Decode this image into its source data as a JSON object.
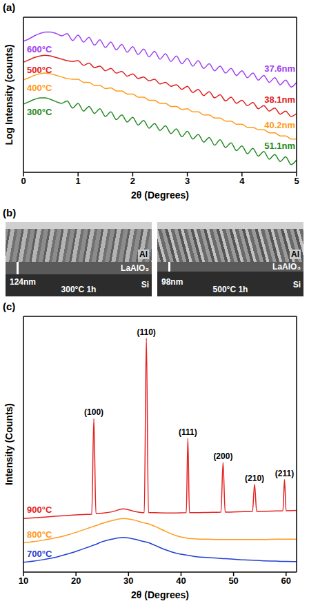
{
  "chart_data": [
    {
      "panel": "(a)",
      "type": "line",
      "x_label": "2θ (Degrees)",
      "y_label": "Log Intensity (counts)",
      "x": [
        0,
        0.1,
        0.2,
        0.3,
        0.4,
        0.5,
        0.6,
        0.7,
        0.8,
        0.9,
        1,
        1.1,
        1.2,
        1.3,
        1.4,
        1.5,
        1.6,
        1.7,
        1.8,
        1.9,
        2,
        2.1,
        2.2,
        2.3,
        2.4,
        2.5,
        2.6,
        2.7,
        2.8,
        2.9,
        3,
        3.1,
        3.2,
        3.3,
        3.4,
        3.5,
        3.6,
        3.7,
        3.8,
        3.9,
        4,
        4.1,
        4.2,
        4.3,
        4.4,
        4.5,
        4.6,
        4.7,
        4.8,
        4.9,
        5
      ],
      "xlim": [
        0,
        5
      ],
      "xticks": [
        0,
        1,
        2,
        3,
        4,
        5
      ],
      "ylim": [
        0,
        20
      ],
      "tick_labels": "x",
      "series": [
        {
          "name": "600°C",
          "color": "#a040f0",
          "annotation": "37.6nm",
          "values": [
            16.9,
            17.2,
            17.6,
            17.9,
            18.1,
            18.1,
            17.9,
            17.6,
            17.9,
            17.0,
            17.7,
            16.8,
            17.4,
            16.4,
            17.1,
            16.1,
            16.8,
            15.8,
            16.5,
            15.5,
            16.2,
            15.2,
            15.9,
            14.9,
            15.6,
            14.6,
            15.3,
            14.3,
            15.0,
            14.0,
            14.7,
            13.7,
            14.4,
            13.4,
            14.0,
            13.1,
            13.7,
            12.8,
            13.4,
            12.5,
            13.1,
            12.2,
            12.8,
            11.9,
            12.5,
            11.6,
            12.2,
            11.3,
            11.9,
            11.0,
            11.6
          ]
        },
        {
          "name": "500°C",
          "color": "#e02020",
          "annotation": "38.1nm",
          "values": [
            14.2,
            14.5,
            14.8,
            15.0,
            15.1,
            15.0,
            14.8,
            14.6,
            14.4,
            14.3,
            14.4,
            13.8,
            14.1,
            13.5,
            13.7,
            13.1,
            13.4,
            12.8,
            13.0,
            12.4,
            12.7,
            12.1,
            12.3,
            11.8,
            12.0,
            11.4,
            11.6,
            11.1,
            11.3,
            10.7,
            11.1,
            10.3,
            10.7,
            9.9,
            10.4,
            9.6,
            10.0,
            9.2,
            9.7,
            8.9,
            9.3,
            8.6,
            9.0,
            8.2,
            8.6,
            7.9,
            8.3,
            7.5,
            7.9,
            7.2,
            7.6
          ]
        },
        {
          "name": "400°C",
          "color": "#ff9a1a",
          "annotation": "40.2nm",
          "values": [
            11.9,
            12.2,
            12.5,
            12.7,
            12.8,
            12.7,
            12.5,
            12.3,
            12.1,
            12.0,
            12.0,
            11.6,
            11.6,
            11.2,
            11.2,
            10.8,
            10.9,
            10.5,
            10.5,
            10.1,
            10.1,
            9.7,
            9.7,
            9.3,
            9.3,
            8.9,
            8.9,
            8.5,
            8.5,
            8.1,
            8.2,
            7.8,
            7.8,
            7.4,
            7.4,
            7.0,
            7.0,
            6.6,
            6.6,
            6.2,
            6.2,
            5.8,
            5.8,
            5.5,
            5.5,
            5.1,
            5.1,
            4.7,
            4.7,
            4.3,
            4.3
          ]
        },
        {
          "name": "300°C",
          "color": "#228b22",
          "annotation": "51.1nm",
          "values": [
            8.8,
            9.1,
            9.4,
            9.6,
            9.6,
            9.4,
            9.1,
            8.9,
            9.2,
            8.3,
            8.9,
            7.9,
            8.5,
            7.6,
            8.2,
            7.2,
            7.8,
            6.8,
            7.4,
            6.5,
            7.1,
            6.1,
            6.7,
            5.7,
            6.3,
            5.4,
            6.0,
            5.0,
            5.6,
            4.6,
            5.3,
            4.3,
            4.9,
            3.9,
            4.5,
            3.5,
            4.2,
            3.2,
            3.8,
            2.8,
            3.4,
            2.4,
            3.1,
            2.1,
            2.7,
            1.7,
            2.3,
            1.4,
            2.0,
            1.0,
            1.6
          ]
        }
      ]
    },
    {
      "panel": "(b)",
      "type": "sem_image",
      "images": [
        {
          "caption": "300°C 1h",
          "scale_label": "124nm",
          "layers": [
            "Al",
            "LaAlO₃",
            "Si"
          ]
        },
        {
          "caption": "500°C 1h",
          "scale_label": "98nm",
          "layers": [
            "Al",
            "LaAlO₃",
            "Si"
          ]
        }
      ]
    },
    {
      "panel": "(c)",
      "type": "line",
      "x_label": "2θ (Degrees)",
      "y_label": "Intensity (Counts)",
      "x": [
        10,
        12,
        14,
        16,
        18,
        20,
        22,
        23,
        23.4,
        23.8,
        25,
        27,
        29,
        31,
        33,
        33.4,
        33.8,
        35,
        37,
        39,
        41,
        41.3,
        41.6,
        43,
        45,
        47.6,
        48,
        48.4,
        50,
        52,
        53.6,
        54,
        54.4,
        56,
        58,
        59.4,
        59.7,
        60,
        62
      ],
      "xlim": [
        10,
        62
      ],
      "xticks": [
        10,
        20,
        30,
        40,
        50,
        60
      ],
      "ylim": [
        0,
        105
      ],
      "tick_labels": "x",
      "series": [
        {
          "name": "900°C",
          "color": "#e52222",
          "values": [
            22,
            22.3,
            22.6,
            22.9,
            23.2,
            23.5,
            23.7,
            23.8,
            63,
            24,
            24.2,
            24.8,
            26,
            25,
            24.4,
            96,
            24.5,
            24.4,
            24.3,
            24.3,
            24.4,
            55,
            24.4,
            24.4,
            24.5,
            24.6,
            45,
            24.6,
            24.7,
            24.8,
            24.9,
            36,
            24.9,
            25,
            25.1,
            25.2,
            38,
            25.2,
            25.3
          ]
        },
        {
          "name": "800°C",
          "color": "#ff9a1a",
          "values": [
            12,
            12.5,
            13.2,
            14,
            15,
            16.3,
            17.8,
            18.5,
            18.8,
            19.1,
            20,
            21.2,
            22,
            21.4,
            20.2,
            20,
            19.8,
            18.8,
            16.8,
            15,
            14,
            13.9,
            13.8,
            13.6,
            13.5,
            13.4,
            13.4,
            13.4,
            13.4,
            13.4,
            13.4,
            13.4,
            13.4,
            13.4,
            13.5,
            13.5,
            13.5,
            13.5,
            13.5
          ]
        },
        {
          "name": "700°C",
          "color": "#1f3fd0",
          "values": [
            4,
            4.5,
            5.2,
            6,
            7.2,
            8.5,
            10,
            10.8,
            11.1,
            11.4,
            12.5,
            13.6,
            14.2,
            13.6,
            12.5,
            12.3,
            12.1,
            11,
            9.2,
            7.8,
            7,
            6.9,
            6.8,
            6.3,
            6,
            5.6,
            5.5,
            5.5,
            5.3,
            5,
            4.9,
            4.8,
            4.8,
            4.6,
            4.5,
            4.4,
            4.4,
            4.4,
            4.3
          ]
        }
      ],
      "annotations": [
        {
          "series": "900°C",
          "x": 23.4,
          "text": "(100)"
        },
        {
          "series": "900°C",
          "x": 33.4,
          "text": "(110)"
        },
        {
          "series": "900°C",
          "x": 41.3,
          "text": "(111)"
        },
        {
          "series": "900°C",
          "x": 48,
          "text": "(200)"
        },
        {
          "series": "900°C",
          "x": 54,
          "text": "(210)"
        },
        {
          "series": "900°C",
          "x": 59.7,
          "text": "(211)"
        }
      ]
    }
  ]
}
